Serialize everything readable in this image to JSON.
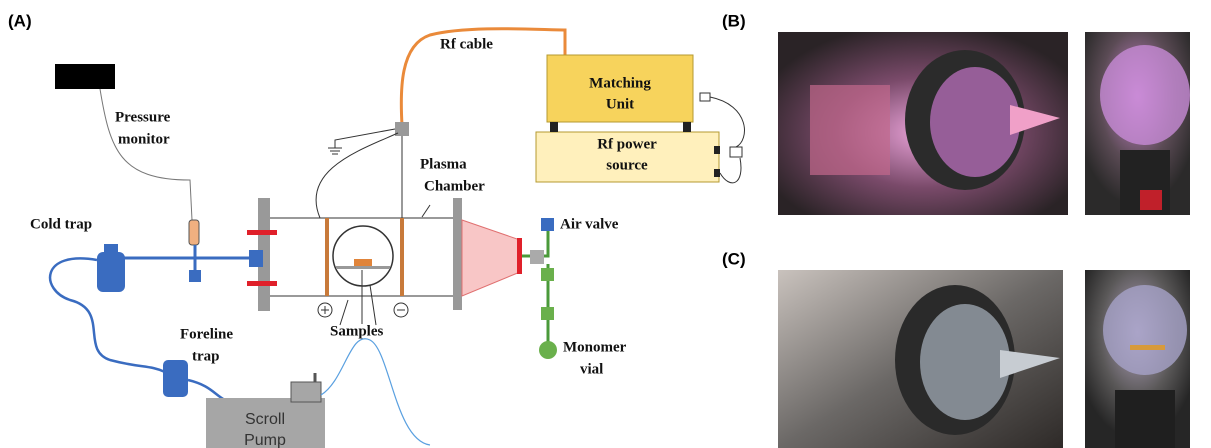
{
  "panels": [
    {
      "label": "(A)"
    },
    {
      "label": "(B)"
    },
    {
      "label": "(C)"
    }
  ],
  "nodes": [
    {
      "lines": [
        "Rf cable"
      ]
    },
    {
      "lines": [
        "Matching",
        "Unit"
      ]
    },
    {
      "lines": [
        "Rf power",
        "source"
      ]
    },
    {
      "lines": [
        "Pressure",
        "monitor"
      ]
    },
    {
      "lines": [
        "Plasma",
        "Chamber"
      ]
    },
    {
      "lines": [
        "Cold trap"
      ]
    },
    {
      "lines": [
        "Air valve"
      ]
    },
    {
      "lines": [
        "Foreline",
        "trap"
      ]
    },
    {
      "lines": [
        "Samples"
      ]
    },
    {
      "lines": [
        "Monomer",
        "vial"
      ]
    },
    {
      "lines": [
        "Scroll",
        "Pump"
      ]
    }
  ]
}
